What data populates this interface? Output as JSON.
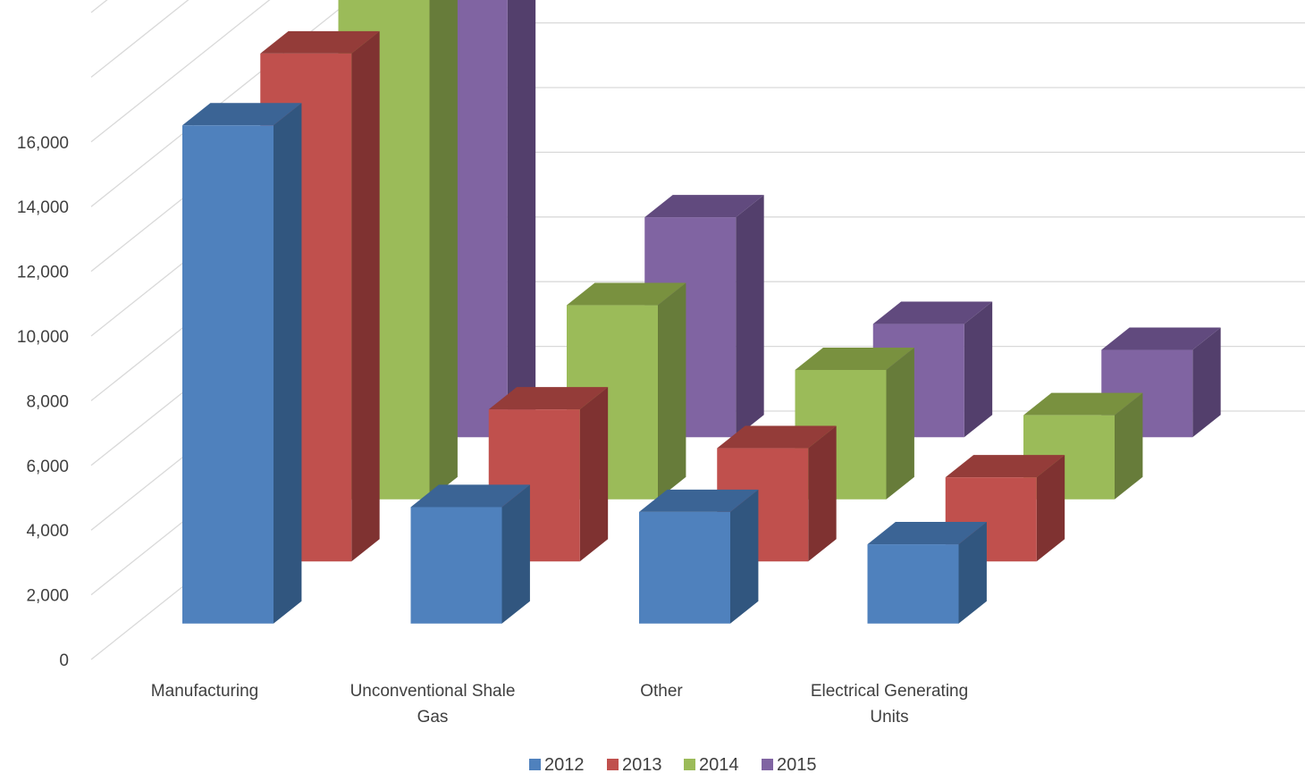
{
  "chart_data": {
    "type": "bar",
    "subtype": "3d-column",
    "title": "",
    "xlabel": "",
    "ylabel": "",
    "ylim": [
      0,
      16000
    ],
    "y_ticks": [
      "0",
      "2,000",
      "4,000",
      "6,000",
      "8,000",
      "10,000",
      "12,000",
      "14,000",
      "16,000"
    ],
    "categories": [
      [
        "Manufacturing"
      ],
      [
        "Unconventional Shale",
        "Gas"
      ],
      [
        "Other"
      ],
      [
        "Electrical Generating",
        "Units"
      ]
    ],
    "series": [
      {
        "name": "2012",
        "color": "#4F81BD",
        "side": "#31567F",
        "top": "#3B6495",
        "values": [
          15400,
          3600,
          3450,
          2450
        ]
      },
      {
        "name": "2013",
        "color": "#C0504D",
        "side": "#7F3231",
        "top": "#943C39",
        "values": [
          15700,
          4700,
          3500,
          2600
        ]
      },
      {
        "name": "2014",
        "color": "#9BBB59",
        "side": "#677C3A",
        "top": "#79913F",
        "values": [
          15900,
          6000,
          4000,
          2600
        ]
      },
      {
        "name": "2015",
        "color": "#8064A2",
        "side": "#533F6C",
        "top": "#614A7E",
        "values": [
          15000,
          6800,
          3500,
          2700
        ]
      }
    ],
    "grid": true,
    "legend": "bottom"
  }
}
